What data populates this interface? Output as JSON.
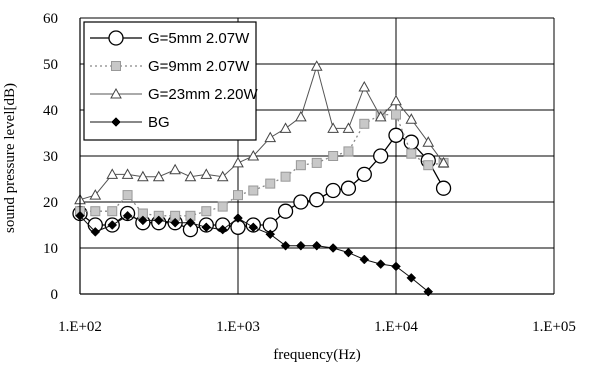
{
  "chart_data": {
    "type": "line",
    "title": "",
    "xlabel": "frequency(Hz)",
    "ylabel": "sound pressure level[dB)",
    "x_scale": "log",
    "xlim": [
      100,
      100000
    ],
    "ylim": [
      0,
      60
    ],
    "x_ticks": [
      100,
      1000,
      10000,
      100000
    ],
    "x_tick_labels": [
      "1.E+02",
      "1.E+03",
      "1.E+04",
      "1.E+05"
    ],
    "y_ticks": [
      0,
      10,
      20,
      30,
      40,
      50,
      60
    ],
    "y_tick_labels": [
      "0",
      "10",
      "20",
      "30",
      "40",
      "50",
      "60"
    ],
    "grid": true,
    "legend_position": "top-left",
    "series": [
      {
        "name": "G=5mm 2.07W",
        "marker": "circle",
        "line": "solid",
        "x": [
          100,
          125,
          160,
          200,
          250,
          315,
          400,
          500,
          630,
          800,
          1000,
          1250,
          1600,
          2000,
          2500,
          3150,
          4000,
          5000,
          6300,
          8000,
          10000,
          12500,
          16000,
          20000
        ],
        "y": [
          17.5,
          15,
          15,
          17.5,
          15.5,
          15.5,
          15.5,
          14,
          15,
          15,
          14.5,
          15,
          15,
          18,
          20,
          20.5,
          22.5,
          23,
          26,
          30,
          34.5,
          33,
          29,
          23
        ]
      },
      {
        "name": "G=9mm 2.07W",
        "marker": "square",
        "line": "dotted",
        "x": [
          100,
          125,
          160,
          200,
          250,
          315,
          400,
          500,
          630,
          800,
          1000,
          1250,
          1600,
          2000,
          2500,
          3150,
          4000,
          5000,
          6300,
          8000,
          10000,
          12500,
          16000,
          20000
        ],
        "y": [
          18,
          18,
          18,
          21.5,
          17.5,
          17,
          17,
          17,
          18,
          19,
          21.5,
          22.5,
          24,
          25.5,
          28,
          28.5,
          30,
          31,
          37,
          39,
          39,
          30.5,
          28,
          28.5
        ]
      },
      {
        "name": "G=23mm 2.20W",
        "marker": "triangle",
        "line": "solid",
        "x": [
          100,
          125,
          160,
          200,
          250,
          315,
          400,
          500,
          630,
          800,
          1000,
          1250,
          1600,
          2000,
          2500,
          3150,
          4000,
          5000,
          6300,
          8000,
          10000,
          12500,
          16000,
          20000
        ],
        "y": [
          20.5,
          21.5,
          26,
          26,
          25.5,
          25.5,
          27,
          25.5,
          26,
          25.5,
          28.5,
          30,
          34,
          36,
          38.5,
          49.5,
          36,
          36,
          45,
          38.5,
          42,
          38,
          33,
          28.5
        ]
      },
      {
        "name": "BG",
        "marker": "diamond",
        "line": "solid",
        "x": [
          100,
          125,
          160,
          200,
          250,
          315,
          400,
          500,
          630,
          800,
          1000,
          1250,
          1600,
          2000,
          2500,
          3150,
          4000,
          5000,
          6300,
          8000,
          10000,
          12500,
          16000
        ],
        "y": [
          17,
          13.5,
          15,
          17,
          16,
          16,
          15.5,
          15.5,
          14.5,
          14,
          16.5,
          14.5,
          13,
          10.5,
          10.5,
          10.5,
          10,
          9,
          7.5,
          6.5,
          6,
          3.5,
          0.5
        ]
      }
    ]
  }
}
